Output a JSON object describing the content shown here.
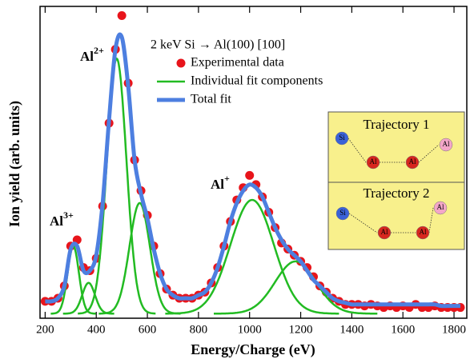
{
  "chart_data": {
    "type": "line",
    "title": "2 keV Si → Al(100) [100]",
    "x_label": "Energy/Charge (eV)",
    "y_label": "Ion yield (arb. units)",
    "xlim": [
      180,
      1850
    ],
    "ylim": [
      -0.015,
      1
    ],
    "xticks": [
      200,
      400,
      600,
      800,
      1000,
      1200,
      1400,
      1600,
      1800
    ],
    "x": [
      200,
      225,
      250,
      275,
      300,
      325,
      350,
      375,
      400,
      425,
      450,
      475,
      500,
      525,
      550,
      575,
      600,
      625,
      650,
      675,
      700,
      725,
      750,
      775,
      800,
      825,
      850,
      875,
      900,
      925,
      950,
      975,
      1000,
      1025,
      1050,
      1075,
      1100,
      1125,
      1150,
      1175,
      1200,
      1225,
      1250,
      1275,
      1300,
      1325,
      1350,
      1375,
      1400,
      1425,
      1450,
      1475,
      1500,
      1525,
      1550,
      1575,
      1600,
      1625,
      1650,
      1675,
      1700,
      1725,
      1750,
      1775,
      1800,
      1825
    ],
    "series": [
      {
        "name": "Experimental data",
        "color": "#e8141b",
        "marker": "dot",
        "values": [
          0.04,
          0.04,
          0.05,
          0.09,
          0.22,
          0.24,
          0.15,
          0.14,
          0.18,
          0.35,
          0.62,
          0.86,
          0.97,
          0.75,
          0.5,
          0.4,
          0.32,
          0.22,
          0.13,
          0.08,
          0.06,
          0.05,
          0.05,
          0.05,
          0.06,
          0.07,
          0.1,
          0.15,
          0.22,
          0.3,
          0.37,
          0.41,
          0.45,
          0.42,
          0.38,
          0.33,
          0.28,
          0.23,
          0.21,
          0.19,
          0.17,
          0.15,
          0.12,
          0.09,
          0.07,
          0.05,
          0.04,
          0.03,
          0.03,
          0.03,
          0.025,
          0.03,
          0.025,
          0.02,
          0.025,
          0.02,
          0.025,
          0.02,
          0.03,
          0.02,
          0.02,
          0.025,
          0.02,
          0.02,
          0.02,
          0.02
        ]
      },
      {
        "name": "Individual fit components",
        "color": "#22bb22",
        "marker": "gaussians",
        "components": [
          {
            "center": 310,
            "height": 0.22,
            "width": 22
          },
          {
            "center": 370,
            "height": 0.1,
            "width": 25
          },
          {
            "center": 480,
            "height": 0.83,
            "width": 38
          },
          {
            "center": 570,
            "height": 0.36,
            "width": 40
          },
          {
            "center": 1010,
            "height": 0.37,
            "width": 85
          },
          {
            "center": 1180,
            "height": 0.17,
            "width": 80
          }
        ]
      },
      {
        "name": "Total fit",
        "color": "#4d7fe0",
        "marker": "line",
        "values": [
          0.04,
          0.04,
          0.05,
          0.09,
          0.21,
          0.22,
          0.14,
          0.14,
          0.19,
          0.36,
          0.63,
          0.86,
          0.9,
          0.74,
          0.5,
          0.39,
          0.31,
          0.21,
          0.13,
          0.08,
          0.06,
          0.05,
          0.05,
          0.05,
          0.06,
          0.07,
          0.1,
          0.15,
          0.22,
          0.3,
          0.36,
          0.4,
          0.42,
          0.41,
          0.38,
          0.33,
          0.28,
          0.24,
          0.21,
          0.19,
          0.17,
          0.14,
          0.11,
          0.09,
          0.07,
          0.05,
          0.04,
          0.035,
          0.03,
          0.03,
          0.03,
          0.03,
          0.03,
          0.03,
          0.03,
          0.03,
          0.03,
          0.03,
          0.03,
          0.03,
          0.03,
          0.03,
          0.025,
          0.025,
          0.025,
          0.025
        ]
      }
    ],
    "annotations": [
      {
        "text": "Al",
        "sup": "3+"
      },
      {
        "text": "Al",
        "sup": "2+"
      },
      {
        "text": "Al",
        "sup": "+"
      }
    ],
    "inset": {
      "panels": [
        {
          "title": "Trajectory 1",
          "atoms": [
            "Si",
            "Al",
            "Al",
            "Al"
          ]
        },
        {
          "title": "Trajectory 2",
          "atoms": [
            "Si",
            "Al",
            "Al",
            "Al"
          ]
        }
      ]
    }
  }
}
